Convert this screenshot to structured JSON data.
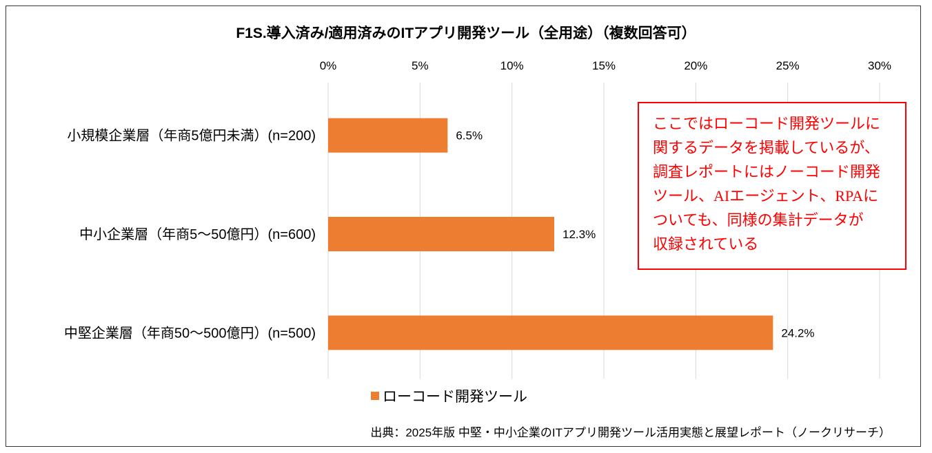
{
  "chart_data": {
    "type": "bar",
    "orientation": "horizontal",
    "title": "F1S.導入済み/適用済みのITアプリ開発ツール（全用途）（複数回答可）",
    "categories": [
      "小規模企業層（年商5億円未満）(n=200)",
      "中小企業層（年商5〜50億円）(n=600)",
      "中堅企業層（年商50〜500億円）(n=500)"
    ],
    "series": [
      {
        "name": "ローコード開発ツール",
        "values": [
          6.5,
          12.3,
          24.2
        ],
        "color": "#ED7D31"
      }
    ],
    "data_labels": [
      "6.5%",
      "12.3%",
      "24.2%"
    ],
    "xlim": [
      0,
      30
    ],
    "xticks": [
      0,
      5,
      10,
      15,
      20,
      25,
      30
    ],
    "xtick_labels": [
      "0%",
      "5%",
      "10%",
      "15%",
      "20%",
      "25%",
      "30%"
    ],
    "axis_position": "top",
    "grid": true,
    "legend_position": "bottom"
  },
  "annotation": {
    "lines": [
      "ここではローコード開発ツールに",
      "関するデータを掲載しているが、",
      "調査レポートにはノーコード開発",
      "ツール、AIエージェント、RPAに",
      "ついても、同様の集計データが",
      "収録されている"
    ],
    "color": "#FF0000"
  },
  "source": "出典：2025年版 中堅・中小企業のITアプリ開発ツール活用実態と展望レポート（ノークリサーチ）"
}
